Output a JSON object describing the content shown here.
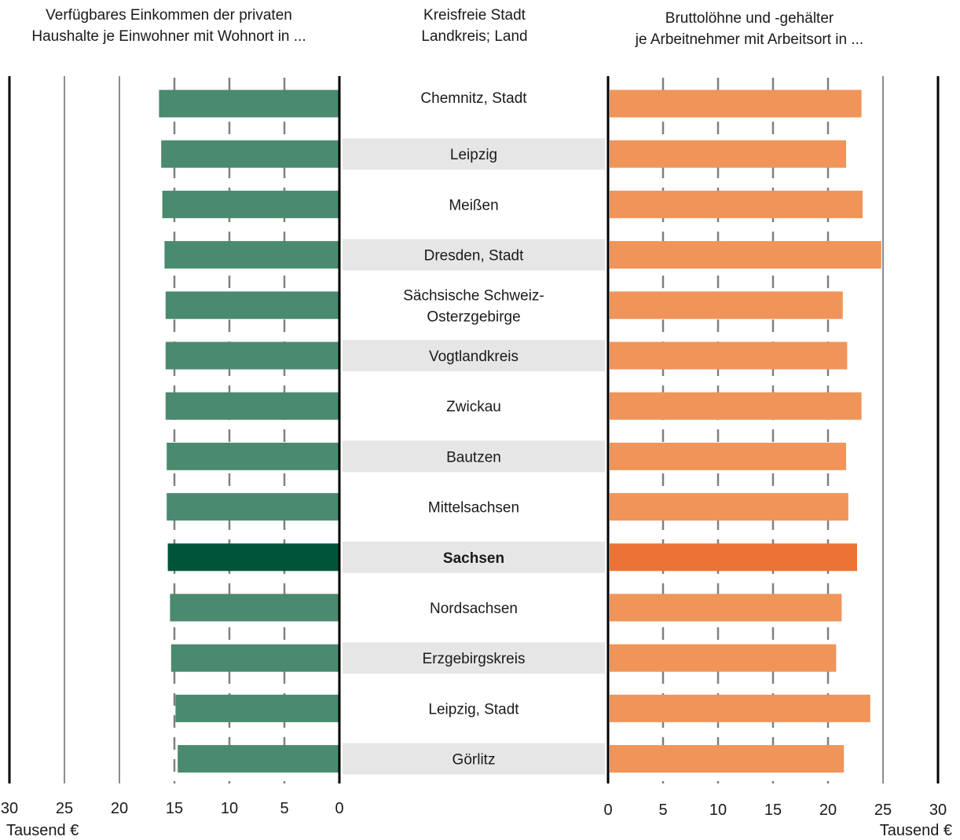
{
  "chart_data": {
    "type": "bar",
    "left_panel": {
      "title_lines": [
        "Verfügbares Einkommen der privaten",
        "Haushalte je Einwohner mit Wohnort in ..."
      ],
      "xlim": [
        0,
        30
      ],
      "ticks": [
        "30",
        "25",
        "20",
        "15",
        "10",
        "5",
        "0"
      ],
      "tick_values": [
        30,
        25,
        20,
        15,
        10,
        5,
        0
      ],
      "unit": "Tausend €",
      "color": "#4a8a6e",
      "highlight_color": "#00543a",
      "direction": "leftward"
    },
    "center": {
      "title_lines": [
        "Kreisfreie Stadt",
        "Landkreis; Land"
      ],
      "band_color": "#e6e6e6"
    },
    "right_panel": {
      "title_lines": [
        "Bruttolöhne und -gehälter",
        "je Arbeitnehmer mit Arbeitsort in ..."
      ],
      "xlim": [
        0,
        30
      ],
      "ticks": [
        "0",
        "5",
        "10",
        "15",
        "20",
        "25",
        "30"
      ],
      "tick_values": [
        0,
        5,
        10,
        15,
        20,
        25,
        30
      ],
      "unit": "Tausend €",
      "color": "#f0945a",
      "highlight_color": "#ec7235"
    },
    "categories": [
      {
        "name": "Chemnitz, Stadt",
        "left": 16.4,
        "right": 22.9
      },
      {
        "name": "Leipzig",
        "left": 16.2,
        "right": 21.5
      },
      {
        "name": "Meißen",
        "left": 16.1,
        "right": 23.0
      },
      {
        "name": "Dresden, Stadt",
        "left": 15.9,
        "right": 24.7
      },
      {
        "name": "Sächsische Schweiz-\nOsterzgebirge",
        "left": 15.8,
        "right": 21.2
      },
      {
        "name": "Vogtlandkreis",
        "left": 15.8,
        "right": 21.6
      },
      {
        "name": "Zwickau",
        "left": 15.8,
        "right": 22.9
      },
      {
        "name": "Bautzen",
        "left": 15.7,
        "right": 21.5
      },
      {
        "name": "Mittelsachsen",
        "left": 15.7,
        "right": 21.7
      },
      {
        "name": "Sachsen",
        "left": 15.6,
        "right": 22.5,
        "highlight": true
      },
      {
        "name": "Nordsachsen",
        "left": 15.4,
        "right": 21.1
      },
      {
        "name": "Erzgebirgskreis",
        "left": 15.3,
        "right": 20.6
      },
      {
        "name": "Leipzig, Stadt",
        "left": 14.9,
        "right": 23.7
      },
      {
        "name": "Görlitz",
        "left": 14.7,
        "right": 21.3
      }
    ]
  }
}
